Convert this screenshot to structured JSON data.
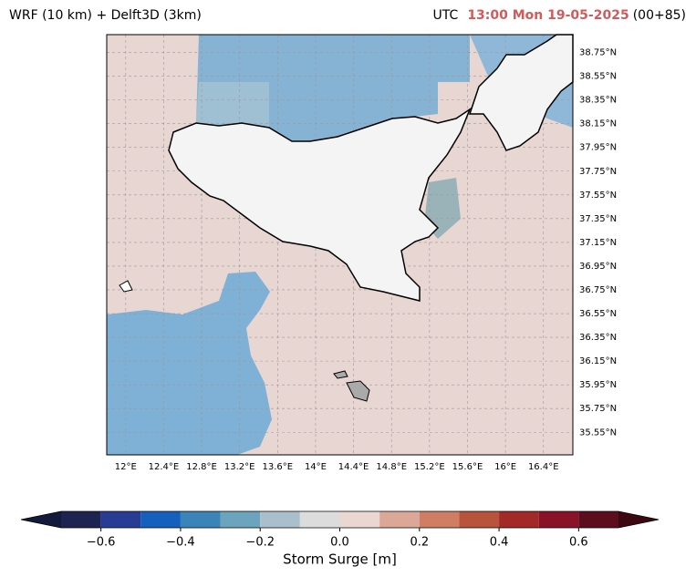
{
  "header": {
    "left_title": "WRF (10 km) + Delft3D (3km)",
    "tz": "UTC",
    "time": "13:00 Mon 19-05-2025",
    "time_color": "#cd5c5c",
    "lead": "(00+85)"
  },
  "map": {
    "lonlim": [
      11.8,
      16.71
    ],
    "latlim": [
      35.36,
      38.9
    ],
    "sea_color": "#e8d6d2",
    "lon_ticks": [
      {
        "value": 12,
        "label": "12°E"
      },
      {
        "value": 12.4,
        "label": "12.4°E"
      },
      {
        "value": 12.8,
        "label": "12.8°E"
      },
      {
        "value": 13.2,
        "label": "13.2°E"
      },
      {
        "value": 13.6,
        "label": "13.6°E"
      },
      {
        "value": 14,
        "label": "14°E"
      },
      {
        "value": 14.4,
        "label": "14.4°E"
      },
      {
        "value": 14.8,
        "label": "14.8°E"
      },
      {
        "value": 15.2,
        "label": "15.2°E"
      },
      {
        "value": 15.6,
        "label": "15.6°E"
      },
      {
        "value": 16,
        "label": "16°E"
      },
      {
        "value": 16.4,
        "label": "16.4°E"
      }
    ],
    "lat_ticks": [
      {
        "value": 38.75,
        "label": "38.75°N"
      },
      {
        "value": 38.55,
        "label": "38.55°N"
      },
      {
        "value": 38.35,
        "label": "38.35°N"
      },
      {
        "value": 38.15,
        "label": "38.15°N"
      },
      {
        "value": 37.95,
        "label": "37.95°N"
      },
      {
        "value": 37.75,
        "label": "37.75°N"
      },
      {
        "value": 37.55,
        "label": "37.55°N"
      },
      {
        "value": 37.35,
        "label": "37.35°N"
      },
      {
        "value": 37.15,
        "label": "37.15°N"
      },
      {
        "value": 36.95,
        "label": "36.95°N"
      },
      {
        "value": 36.75,
        "label": "36.75°N"
      },
      {
        "value": 36.55,
        "label": "36.55°N"
      },
      {
        "value": 36.35,
        "label": "36.35°N"
      },
      {
        "value": 36.15,
        "label": "36.15°N"
      },
      {
        "value": 35.95,
        "label": "35.95°N"
      },
      {
        "value": 35.75,
        "label": "35.75°N"
      },
      {
        "value": 35.55,
        "label": "35.55°N"
      }
    ]
  },
  "colorbar": {
    "label": "Storm Surge [m]",
    "levels": [
      -0.7,
      -0.6,
      -0.5,
      -0.4,
      -0.3,
      -0.2,
      -0.1,
      0,
      0.1,
      0.2,
      0.3,
      0.4,
      0.5,
      0.6,
      0.7
    ],
    "colors": [
      "#1e2452",
      "#283c96",
      "#1560bd",
      "#3a84b8",
      "#6ba4bc",
      "#a9bfcb",
      "#dcdcdc",
      "#ead7d2",
      "#dba898",
      "#cf7e63",
      "#b9543c",
      "#a32828",
      "#8a1228",
      "#5c0e1e"
    ],
    "under_color": "#141a3c",
    "over_color": "#3d0812",
    "ticks": [
      {
        "value": -0.6,
        "label": "−0.6"
      },
      {
        "value": -0.4,
        "label": "−0.4"
      },
      {
        "value": -0.2,
        "label": "−0.2"
      },
      {
        "value": 0,
        "label": "0.0"
      },
      0.2,
      0.4,
      0.6
    ]
  }
}
